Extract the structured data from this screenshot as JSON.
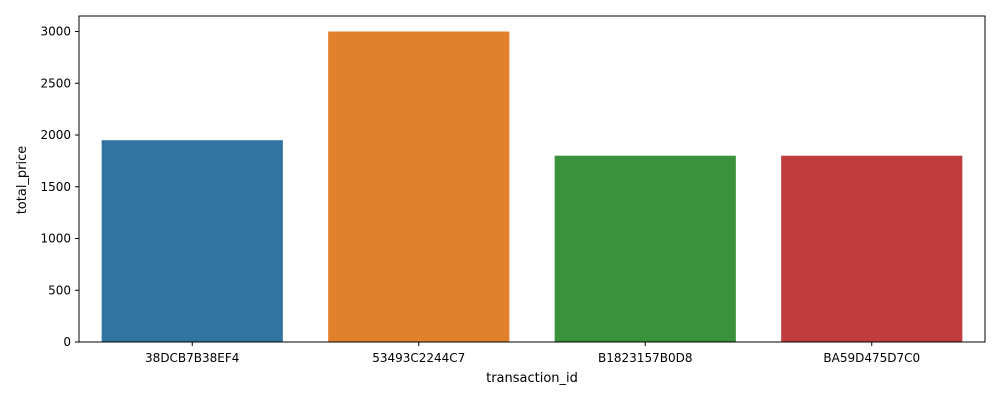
{
  "chart_data": {
    "type": "bar",
    "title": "",
    "xlabel": "transaction_id",
    "ylabel": "total_price",
    "categories": [
      "38DCB7B38EF4",
      "53493C2244C7",
      "B1823157B0D8",
      "BA59D475D7C0"
    ],
    "values": [
      1950,
      3000,
      1800,
      1800
    ],
    "colors": [
      "#3274a1",
      "#e1812c",
      "#3a923a",
      "#c03d3e"
    ],
    "ylim": [
      0,
      3150
    ],
    "yticks": [
      0,
      500,
      1000,
      1500,
      2000,
      2500,
      3000
    ],
    "grid": false,
    "legend": "none"
  }
}
